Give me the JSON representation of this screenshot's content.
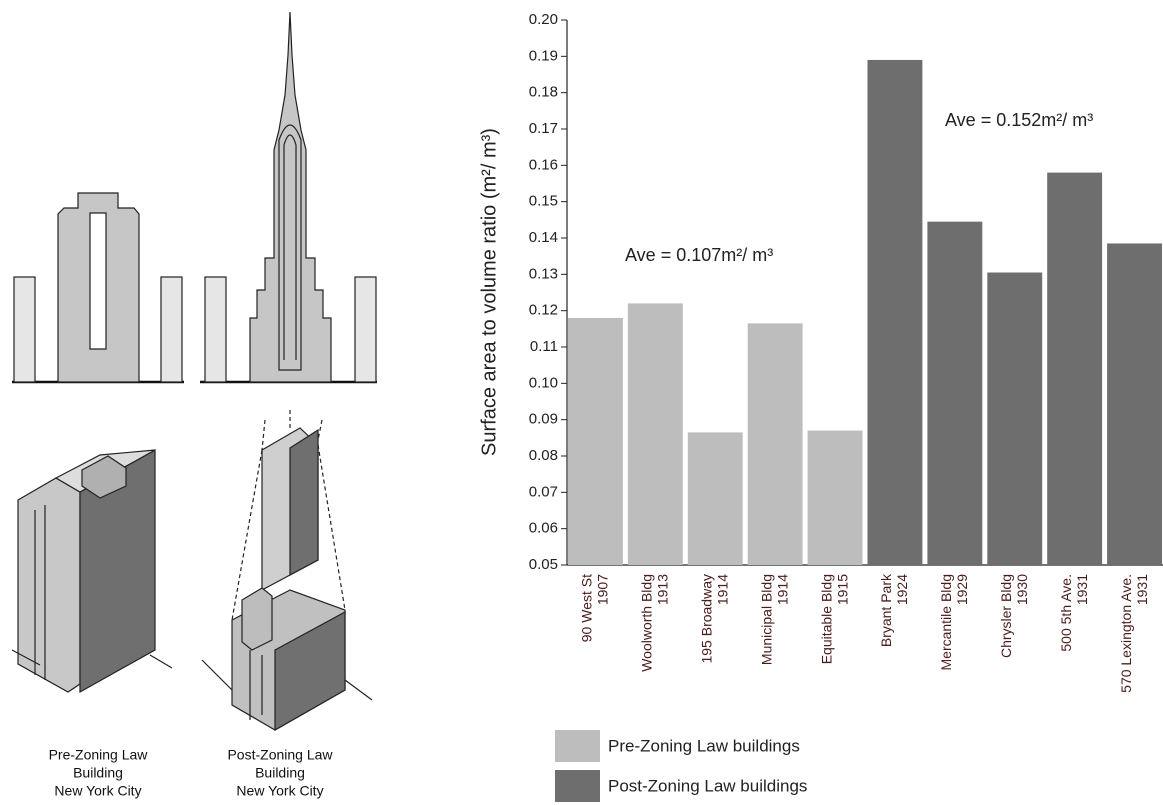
{
  "chart_data": {
    "type": "bar",
    "y_label": "Surface area to volume ratio  (m²/ m³)",
    "categories": [
      [
        "90 West St",
        "1907"
      ],
      [
        "Woolworth Bldg",
        "1913"
      ],
      [
        "195 Broadway",
        "1914"
      ],
      [
        "Municipal Bldg",
        "1914"
      ],
      [
        "Equitable Bldg",
        "1915"
      ],
      [
        "Bryant Park",
        "1924"
      ],
      [
        "Mercantile Bldg",
        "1929"
      ],
      [
        "Chrysler Bldg",
        "1930"
      ],
      [
        "500 5th Ave.",
        "1931"
      ],
      [
        "570 Lexington Ave.",
        "1931"
      ]
    ],
    "series": [
      {
        "name": "Pre-Zoning Law buildings",
        "color": "#bdbdbd",
        "values": [
          0.118,
          0.122,
          0.0865,
          0.1165,
          0.087,
          null,
          null,
          null,
          null,
          null
        ]
      },
      {
        "name": "Post-Zoning Law buildings",
        "color": "#6e6e6e",
        "values": [
          null,
          null,
          null,
          null,
          null,
          0.189,
          0.1445,
          0.1305,
          0.158,
          0.1385
        ]
      }
    ],
    "annotations": [
      "Ave = 0.107m²/ m³",
      "Ave = 0.152m²/ m³"
    ],
    "ylim": [
      0.05,
      0.2
    ],
    "yticks": [
      0.05,
      0.06,
      0.07,
      0.08,
      0.09,
      {
        "value": 0.1,
        "label": "0.10"
      },
      0.11,
      0.12,
      0.13,
      0.14,
      0.15,
      0.16,
      0.17,
      0.18,
      0.19,
      {
        "value": 0.2,
        "label": "0.20"
      }
    ]
  },
  "illustration": {
    "captions": [
      [
        "Pre-Zoning Law",
        "Building",
        "New York City"
      ],
      [
        "Post-Zoning Law",
        "Building",
        "New York City"
      ]
    ]
  }
}
